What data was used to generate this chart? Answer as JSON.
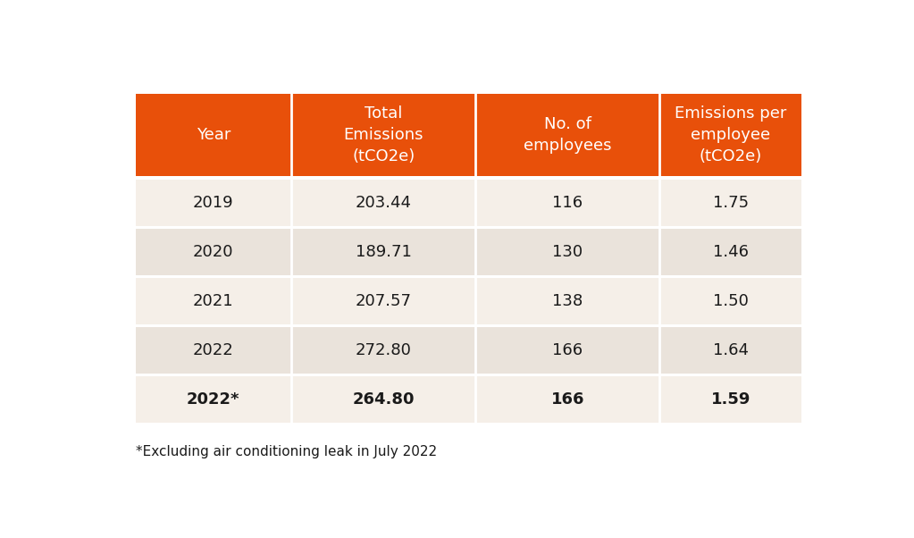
{
  "header_labels": [
    "Year",
    "Total\nEmissions\n(tCO2e)",
    "No. of\nemployees",
    "Emissions per\nemployee\n(tCO2e)"
  ],
  "rows": [
    {
      "year": "2019",
      "emissions": "203.44",
      "employees": "116",
      "per_employee": "1.75",
      "bold": false
    },
    {
      "year": "2020",
      "emissions": "189.71",
      "employees": "130",
      "per_employee": "1.46",
      "bold": false
    },
    {
      "year": "2021",
      "emissions": "207.57",
      "employees": "138",
      "per_employee": "1.50",
      "bold": false
    },
    {
      "year": "2022",
      "emissions": "272.80",
      "employees": "166",
      "per_employee": "1.64",
      "bold": false
    },
    {
      "year": "2022*",
      "emissions": "264.80",
      "employees": "166",
      "per_employee": "1.59",
      "bold": true
    }
  ],
  "header_bg_color": "#E8500A",
  "header_text_color": "#FFFFFF",
  "row_bg_color_odd": "#F5EFE8",
  "row_bg_color_even": "#EAE3DB",
  "row_text_color": "#1A1A1A",
  "divider_color": "#FFFFFF",
  "footer_note": "*Excluding air conditioning leak in July 2022",
  "background_color": "#FFFFFF",
  "header_fontsize": 13,
  "data_fontsize": 13,
  "footer_fontsize": 11
}
